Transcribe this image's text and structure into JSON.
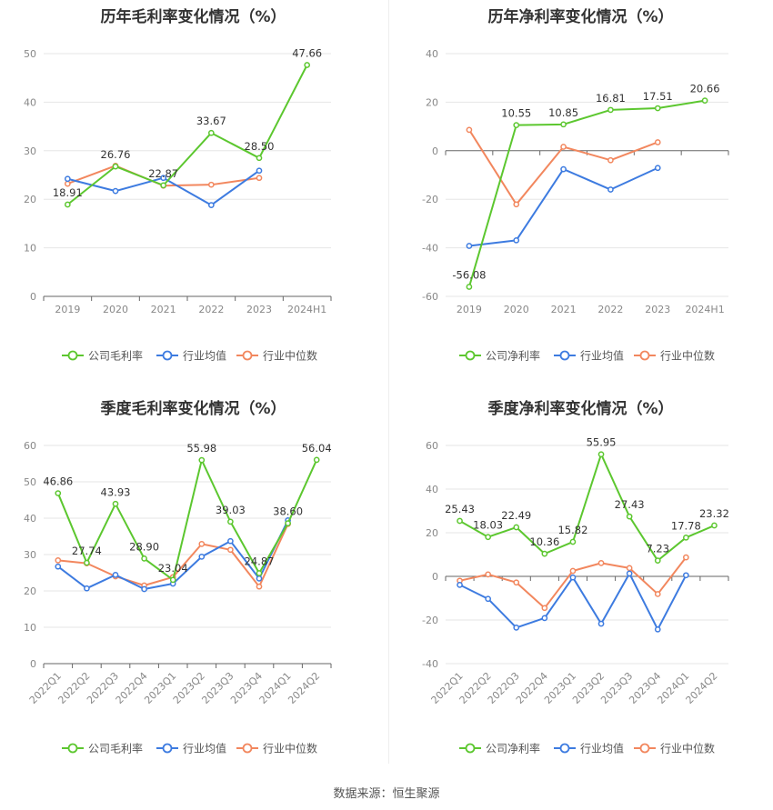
{
  "footer": "数据来源：恒生聚源",
  "colors": {
    "company": "#5cc72f",
    "industry_avg": "#3d7be0",
    "industry_median": "#f2875e",
    "grid": "#e6e6e6",
    "axis": "#666666",
    "tick_text": "#888888"
  },
  "chart_data": [
    {
      "type": "line",
      "title": "历年毛利率变化情况（%）",
      "categories": [
        "2019",
        "2020",
        "2021",
        "2022",
        "2023",
        "2024H1"
      ],
      "ylim": [
        0,
        50
      ],
      "yticks": [
        0,
        10,
        20,
        30,
        40,
        50
      ],
      "xlabel_rotate": false,
      "legend": "bottom",
      "series": [
        {
          "name": "公司毛利率",
          "key": "company",
          "values": [
            18.91,
            26.76,
            22.87,
            33.67,
            28.5,
            47.66
          ],
          "labels": [
            "18.91",
            "26.76",
            "22.87",
            "33.67",
            "28.50",
            "47.66"
          ]
        },
        {
          "name": "行业均值",
          "key": "industry_avg",
          "values": [
            24.2,
            21.7,
            24.4,
            18.8,
            25.9,
            null
          ]
        },
        {
          "name": "行业中位数",
          "key": "industry_median",
          "values": [
            23.2,
            26.9,
            22.8,
            23.0,
            24.4,
            null
          ]
        }
      ]
    },
    {
      "type": "line",
      "title": "历年净利率变化情况（%）",
      "categories": [
        "2019",
        "2020",
        "2021",
        "2022",
        "2023",
        "2024H1"
      ],
      "ylim": [
        -60,
        40
      ],
      "yticks": [
        -60,
        -40,
        -20,
        0,
        20,
        40
      ],
      "xlabel_rotate": false,
      "legend": "bottom",
      "series": [
        {
          "name": "公司净利率",
          "key": "company",
          "values": [
            -56.08,
            10.55,
            10.85,
            16.81,
            17.51,
            20.66
          ],
          "labels": [
            "-56.08",
            "10.55",
            "10.85",
            "16.81",
            "17.51",
            "20.66"
          ]
        },
        {
          "name": "行业均值",
          "key": "industry_avg",
          "values": [
            -39.2,
            -36.9,
            -7.6,
            -16.0,
            -7.1,
            null
          ]
        },
        {
          "name": "行业中位数",
          "key": "industry_median",
          "values": [
            8.6,
            -22.1,
            1.6,
            -3.9,
            3.5,
            null
          ]
        }
      ]
    },
    {
      "type": "line",
      "title": "季度毛利率变化情况（%）",
      "categories": [
        "2022Q1",
        "2022Q2",
        "2022Q3",
        "2022Q4",
        "2023Q1",
        "2023Q2",
        "2023Q3",
        "2023Q4",
        "2024Q1",
        "2024Q2"
      ],
      "ylim": [
        0,
        60
      ],
      "yticks": [
        0,
        10,
        20,
        30,
        40,
        50,
        60
      ],
      "xlabel_rotate": true,
      "legend": "bottom",
      "series": [
        {
          "name": "公司毛利率",
          "key": "company",
          "values": [
            46.86,
            27.74,
            43.93,
            28.9,
            23.04,
            55.98,
            39.03,
            24.87,
            38.6,
            56.04
          ],
          "labels": [
            "46.86",
            "27.74",
            "43.93",
            "28.90",
            "23.04",
            "55.98",
            "39.03",
            "24.87",
            "38.60",
            "56.04"
          ]
        },
        {
          "name": "行业均值",
          "key": "industry_avg",
          "values": [
            26.7,
            20.7,
            24.4,
            20.5,
            22.0,
            29.4,
            33.7,
            23.4,
            39.4,
            null
          ]
        },
        {
          "name": "行业中位数",
          "key": "industry_median",
          "values": [
            28.4,
            27.6,
            24.0,
            21.5,
            23.8,
            32.9,
            31.3,
            21.2,
            38.4,
            null
          ]
        }
      ]
    },
    {
      "type": "line",
      "title": "季度净利率变化情况（%）",
      "categories": [
        "2022Q1",
        "2022Q2",
        "2022Q3",
        "2022Q4",
        "2023Q1",
        "2023Q2",
        "2023Q3",
        "2023Q4",
        "2024Q1",
        "2024Q2"
      ],
      "ylim": [
        -40,
        60
      ],
      "yticks": [
        -40,
        -20,
        0,
        20,
        40,
        60
      ],
      "xlabel_rotate": true,
      "legend": "bottom",
      "series": [
        {
          "name": "公司净利率",
          "key": "company",
          "values": [
            25.43,
            18.03,
            22.49,
            10.36,
            15.82,
            55.95,
            27.43,
            7.23,
            17.78,
            23.32
          ],
          "labels": [
            "25.43",
            "18.03",
            "22.49",
            "10.36",
            "15.82",
            "55.95",
            "27.43",
            "7.23",
            "17.78",
            "23.32"
          ]
        },
        {
          "name": "行业均值",
          "key": "industry_avg",
          "values": [
            -3.9,
            -10.3,
            -23.5,
            -19.1,
            -0.5,
            -21.7,
            1.3,
            -24.3,
            0.5,
            null
          ]
        },
        {
          "name": "行业中位数",
          "key": "industry_median",
          "values": [
            -2.0,
            0.9,
            -2.8,
            -14.5,
            2.5,
            6.1,
            3.8,
            -8.1,
            8.7,
            null
          ]
        }
      ]
    }
  ]
}
